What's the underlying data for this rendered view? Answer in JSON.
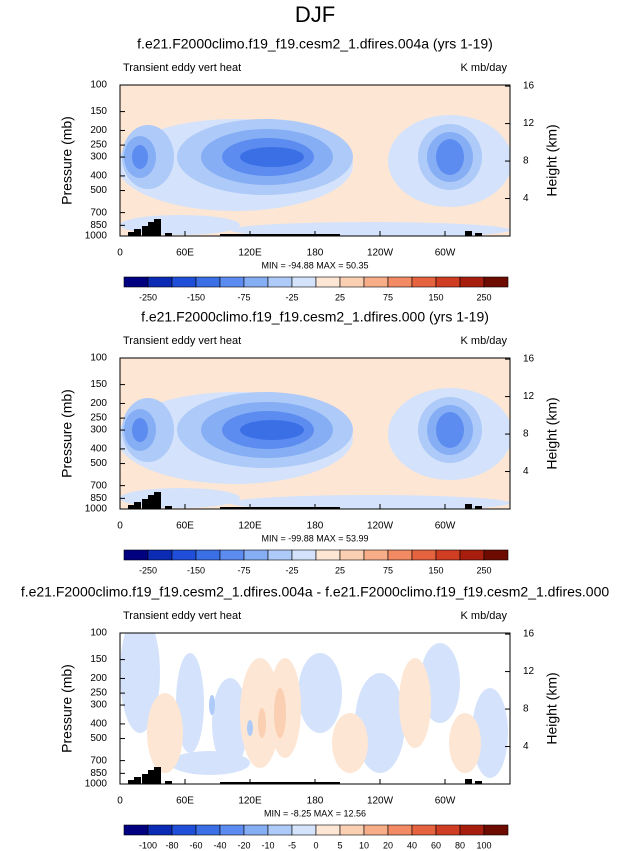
{
  "title": "DJF",
  "chart_data": [
    {
      "type": "contour",
      "title": "f.e21.F2000climo.f19_f19.cesm2_1.dfires.004a (yrs 1-19)",
      "left_label": "Transient eddy vert heat",
      "right_label": "K mb/day",
      "ylabel": "Pressure (mb)",
      "y2label": "Height (km)",
      "xlim": [
        0,
        360
      ],
      "xticks": [
        0,
        {
          "value": 60,
          "label": "60E"
        },
        {
          "value": 120,
          "label": "120E"
        },
        180,
        {
          "value": 240,
          "label": "120W"
        },
        {
          "value": 300,
          "label": "60W"
        }
      ],
      "ylim": [
        1000,
        100
      ],
      "log_y": true,
      "yticks": [
        100,
        150,
        200,
        250,
        300,
        400,
        500,
        700,
        850,
        1000
      ],
      "y2ticks": [
        4,
        8,
        12,
        16
      ],
      "annotation": "MIN = -94.88  MAX = 50.35",
      "colorbar_ticks": [
        -250,
        -150,
        -75,
        -25,
        25,
        75,
        150,
        250
      ],
      "colorbar_colors": [
        "#000080",
        "#0c2bb5",
        "#1f4fd9",
        "#3b6fe6",
        "#5d8cf0",
        "#86aef5",
        "#aecaf8",
        "#d4e3fb",
        "#fde6d4",
        "#fbcfb2",
        "#f7ae88",
        "#f28a63",
        "#e6633f",
        "#cf3d22",
        "#a81e0e",
        "#6e0b00"
      ]
    },
    {
      "type": "contour",
      "title": "f.e21.F2000climo.f19_f19.cesm2_1.dfires.000 (yrs 1-19)",
      "left_label": "Transient eddy vert heat",
      "right_label": "K mb/day",
      "ylabel": "Pressure (mb)",
      "y2label": "Height (km)",
      "xlim": [
        0,
        360
      ],
      "xticks": [
        0,
        {
          "value": 60,
          "label": "60E"
        },
        {
          "value": 120,
          "label": "120E"
        },
        180,
        {
          "value": 240,
          "label": "120W"
        },
        {
          "value": 300,
          "label": "60W"
        }
      ],
      "ylim": [
        1000,
        100
      ],
      "log_y": true,
      "yticks": [
        100,
        150,
        200,
        250,
        300,
        400,
        500,
        700,
        850,
        1000
      ],
      "y2ticks": [
        4,
        8,
        12,
        16
      ],
      "annotation": "MIN = -99.88  MAX = 53.99",
      "colorbar_ticks": [
        -250,
        -150,
        -75,
        -25,
        25,
        75,
        150,
        250
      ],
      "colorbar_colors": [
        "#000080",
        "#0c2bb5",
        "#1f4fd9",
        "#3b6fe6",
        "#5d8cf0",
        "#86aef5",
        "#aecaf8",
        "#d4e3fb",
        "#fde6d4",
        "#fbcfb2",
        "#f7ae88",
        "#f28a63",
        "#e6633f",
        "#cf3d22",
        "#a81e0e",
        "#6e0b00"
      ]
    },
    {
      "type": "contour",
      "title": "f.e21.F2000climo.f19_f19.cesm2_1.dfires.004a - f.e21.F2000climo.f19_f19.cesm2_1.dfires.000",
      "left_label": "Transient eddy vert heat",
      "right_label": "K mb/day",
      "ylabel": "Pressure (mb)",
      "y2label": "Height (km)",
      "xlim": [
        0,
        360
      ],
      "xticks": [
        0,
        {
          "value": 60,
          "label": "60E"
        },
        {
          "value": 120,
          "label": "120E"
        },
        180,
        {
          "value": 240,
          "label": "120W"
        },
        {
          "value": 300,
          "label": "60W"
        }
      ],
      "ylim": [
        1000,
        100
      ],
      "log_y": true,
      "yticks": [
        100,
        150,
        200,
        250,
        300,
        400,
        500,
        700,
        850,
        1000
      ],
      "y2ticks": [
        4,
        8,
        12,
        16
      ],
      "annotation": "MIN = -8.25  MAX = 12.56",
      "colorbar_ticks": [
        -100,
        -80,
        -60,
        -40,
        -20,
        -10,
        -5,
        0,
        5,
        10,
        20,
        40,
        60,
        80,
        100
      ],
      "colorbar_colors": [
        "#000080",
        "#0c2bb5",
        "#1f4fd9",
        "#3b6fe6",
        "#5d8cf0",
        "#86aef5",
        "#aecaf8",
        "#d4e3fb",
        "#fde6d4",
        "#fbcfb2",
        "#f7ae88",
        "#f28a63",
        "#e6633f",
        "#cf3d22",
        "#a81e0e",
        "#6e0b00"
      ]
    }
  ]
}
